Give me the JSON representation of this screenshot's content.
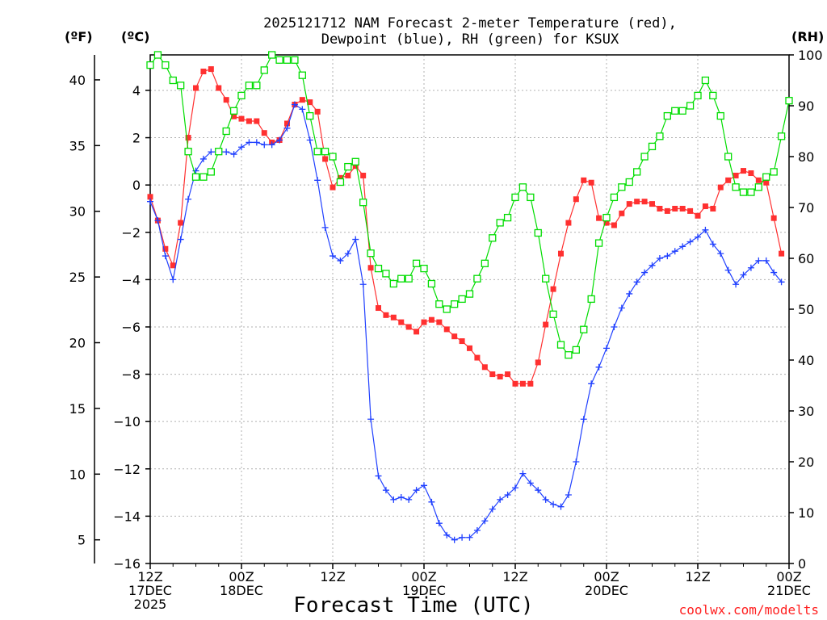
{
  "chart_data": {
    "type": "line",
    "title_line1": "2025121712 NAM Forecast 2-meter Temperature (red),",
    "title_line2": "Dewpoint (blue), RH (green) for KSUX",
    "units": {
      "fahrenheit": "(ºF)",
      "celsius": "(ºC)",
      "rh": "(RH)"
    },
    "xlabel": "Forecast Time (UTC)",
    "credit": "coolwx.com/modelts",
    "x_hours": [
      0,
      84
    ],
    "x_ticks": [
      {
        "h": 0,
        "l1": "12Z",
        "l2": "17DEC",
        "l3": "2025"
      },
      {
        "h": 12,
        "l1": "00Z",
        "l2": "18DEC",
        "l3": ""
      },
      {
        "h": 24,
        "l1": "12Z",
        "l2": "",
        "l3": ""
      },
      {
        "h": 36,
        "l1": "00Z",
        "l2": "19DEC",
        "l3": ""
      },
      {
        "h": 48,
        "l1": "12Z",
        "l2": "",
        "l3": ""
      },
      {
        "h": 60,
        "l1": "00Z",
        "l2": "20DEC",
        "l3": ""
      },
      {
        "h": 72,
        "l1": "12Z",
        "l2": "",
        "l3": ""
      },
      {
        "h": 84,
        "l1": "00Z",
        "l2": "21DEC",
        "l3": ""
      }
    ],
    "celsius_range": [
      -16,
      5.5
    ],
    "celsius_ticks": [
      "4",
      "2",
      "0",
      "−2",
      "−4",
      "−6",
      "−8",
      "−10",
      "−12",
      "−14",
      "−16"
    ],
    "celsius_tick_values": [
      4,
      2,
      0,
      -2,
      -4,
      -6,
      -8,
      -10,
      -12,
      -14,
      -16
    ],
    "fahrenheit_ticks": [
      "40",
      "35",
      "30",
      "25",
      "20",
      "15",
      "10",
      "5"
    ],
    "fahrenheit_tick_values": [
      40,
      35,
      30,
      25,
      20,
      15,
      10,
      5
    ],
    "rh_range": [
      0,
      100
    ],
    "rh_ticks": [
      "100",
      "90",
      "80",
      "70",
      "60",
      "50",
      "40",
      "30",
      "20",
      "10",
      "0"
    ],
    "rh_tick_values": [
      100,
      90,
      80,
      70,
      60,
      50,
      40,
      30,
      20,
      10,
      0
    ],
    "colors": {
      "temperature": "#ff3030",
      "dewpoint": "#2040ff",
      "rh": "#00dd00",
      "axis": "#000000"
    },
    "series": [
      {
        "name": "Temperature",
        "unit": "C",
        "marker": "filled-square",
        "points": [
          [
            0,
            -0.5
          ],
          [
            1,
            -1.5
          ],
          [
            2,
            -2.7
          ],
          [
            3,
            -3.4
          ],
          [
            4,
            -1.6
          ],
          [
            5,
            2.0
          ],
          [
            6,
            4.1
          ],
          [
            7,
            4.8
          ],
          [
            8,
            4.9
          ],
          [
            9,
            4.1
          ],
          [
            10,
            3.6
          ],
          [
            11,
            2.9
          ],
          [
            12,
            2.8
          ],
          [
            13,
            2.7
          ],
          [
            14,
            2.7
          ],
          [
            15,
            2.2
          ],
          [
            16,
            1.8
          ],
          [
            17,
            1.9
          ],
          [
            18,
            2.6
          ],
          [
            19,
            3.4
          ],
          [
            20,
            3.6
          ],
          [
            21,
            3.5
          ],
          [
            22,
            3.1
          ],
          [
            23,
            1.1
          ],
          [
            24,
            -0.1
          ],
          [
            25,
            0.3
          ],
          [
            26,
            0.4
          ],
          [
            27,
            0.8
          ],
          [
            28,
            0.4
          ],
          [
            29,
            -3.5
          ],
          [
            30,
            -5.2
          ],
          [
            31,
            -5.5
          ],
          [
            32,
            -5.6
          ],
          [
            33,
            -5.8
          ],
          [
            34,
            -6.0
          ],
          [
            35,
            -6.2
          ],
          [
            36,
            -5.8
          ],
          [
            37,
            -5.7
          ],
          [
            38,
            -5.8
          ],
          [
            39,
            -6.1
          ],
          [
            40,
            -6.4
          ],
          [
            41,
            -6.6
          ],
          [
            42,
            -6.9
          ],
          [
            43,
            -7.3
          ],
          [
            44,
            -7.7
          ],
          [
            45,
            -8.0
          ],
          [
            46,
            -8.1
          ],
          [
            47,
            -8.0
          ],
          [
            48,
            -8.4
          ],
          [
            49,
            -8.4
          ],
          [
            50,
            -8.4
          ],
          [
            51,
            -7.5
          ],
          [
            52,
            -5.9
          ],
          [
            53,
            -4.4
          ],
          [
            54,
            -2.9
          ],
          [
            55,
            -1.6
          ],
          [
            56,
            -0.6
          ],
          [
            57,
            0.2
          ],
          [
            58,
            0.1
          ],
          [
            59,
            -1.4
          ],
          [
            60,
            -1.6
          ],
          [
            61,
            -1.7
          ],
          [
            62,
            -1.2
          ],
          [
            63,
            -0.8
          ],
          [
            64,
            -0.7
          ],
          [
            65,
            -0.7
          ],
          [
            66,
            -0.8
          ],
          [
            67,
            -1.0
          ],
          [
            68,
            -1.1
          ],
          [
            69,
            -1.0
          ],
          [
            70,
            -1.0
          ],
          [
            71,
            -1.1
          ],
          [
            72,
            -1.3
          ],
          [
            73,
            -0.9
          ],
          [
            74,
            -1.0
          ],
          [
            75,
            -0.1
          ],
          [
            76,
            0.2
          ],
          [
            77,
            0.4
          ],
          [
            78,
            0.6
          ],
          [
            79,
            0.5
          ],
          [
            80,
            0.2
          ],
          [
            81,
            0.1
          ],
          [
            82,
            -1.4
          ],
          [
            83,
            -2.9
          ]
        ]
      },
      {
        "name": "Dewpoint",
        "unit": "C",
        "marker": "plus",
        "points": [
          [
            0,
            -0.7
          ],
          [
            1,
            -1.5
          ],
          [
            2,
            -3.0
          ],
          [
            3,
            -4.0
          ],
          [
            4,
            -2.3
          ],
          [
            5,
            -0.6
          ],
          [
            6,
            0.6
          ],
          [
            7,
            1.1
          ],
          [
            8,
            1.4
          ],
          [
            9,
            1.4
          ],
          [
            10,
            1.4
          ],
          [
            11,
            1.3
          ],
          [
            12,
            1.6
          ],
          [
            13,
            1.8
          ],
          [
            14,
            1.8
          ],
          [
            15,
            1.7
          ],
          [
            16,
            1.7
          ],
          [
            17,
            1.9
          ],
          [
            18,
            2.4
          ],
          [
            19,
            3.4
          ],
          [
            20,
            3.2
          ],
          [
            21,
            1.9
          ],
          [
            22,
            0.2
          ],
          [
            23,
            -1.8
          ],
          [
            24,
            -3.0
          ],
          [
            25,
            -3.2
          ],
          [
            26,
            -2.9
          ],
          [
            27,
            -2.3
          ],
          [
            28,
            -4.2
          ],
          [
            29,
            -9.9
          ],
          [
            30,
            -12.3
          ],
          [
            31,
            -12.9
          ],
          [
            32,
            -13.3
          ],
          [
            33,
            -13.2
          ],
          [
            34,
            -13.3
          ],
          [
            35,
            -12.9
          ],
          [
            36,
            -12.7
          ],
          [
            37,
            -13.4
          ],
          [
            38,
            -14.3
          ],
          [
            39,
            -14.8
          ],
          [
            40,
            -15.0
          ],
          [
            41,
            -14.9
          ],
          [
            42,
            -14.9
          ],
          [
            43,
            -14.6
          ],
          [
            44,
            -14.2
          ],
          [
            45,
            -13.7
          ],
          [
            46,
            -13.3
          ],
          [
            47,
            -13.1
          ],
          [
            48,
            -12.8
          ],
          [
            49,
            -12.2
          ],
          [
            50,
            -12.6
          ],
          [
            51,
            -12.9
          ],
          [
            52,
            -13.3
          ],
          [
            53,
            -13.5
          ],
          [
            54,
            -13.6
          ],
          [
            55,
            -13.1
          ],
          [
            56,
            -11.7
          ],
          [
            57,
            -9.9
          ],
          [
            58,
            -8.4
          ],
          [
            59,
            -7.7
          ],
          [
            60,
            -6.9
          ],
          [
            61,
            -6.0
          ],
          [
            62,
            -5.2
          ],
          [
            63,
            -4.6
          ],
          [
            64,
            -4.1
          ],
          [
            65,
            -3.7
          ],
          [
            66,
            -3.4
          ],
          [
            67,
            -3.1
          ],
          [
            68,
            -3.0
          ],
          [
            69,
            -2.8
          ],
          [
            70,
            -2.6
          ],
          [
            71,
            -2.4
          ],
          [
            72,
            -2.2
          ],
          [
            73,
            -1.9
          ],
          [
            74,
            -2.5
          ],
          [
            75,
            -2.9
          ],
          [
            76,
            -3.6
          ],
          [
            77,
            -4.2
          ],
          [
            78,
            -3.8
          ],
          [
            79,
            -3.5
          ],
          [
            80,
            -3.2
          ],
          [
            81,
            -3.2
          ],
          [
            82,
            -3.7
          ],
          [
            83,
            -4.1
          ]
        ]
      },
      {
        "name": "RH",
        "unit": "%",
        "marker": "open-square",
        "points": [
          [
            0,
            98
          ],
          [
            1,
            100
          ],
          [
            2,
            98
          ],
          [
            3,
            95
          ],
          [
            4,
            94
          ],
          [
            5,
            81
          ],
          [
            6,
            76
          ],
          [
            7,
            76
          ],
          [
            8,
            77
          ],
          [
            9,
            81
          ],
          [
            10,
            85
          ],
          [
            11,
            89
          ],
          [
            12,
            92
          ],
          [
            13,
            94
          ],
          [
            14,
            94
          ],
          [
            15,
            97
          ],
          [
            16,
            100
          ],
          [
            17,
            99
          ],
          [
            18,
            99
          ],
          [
            19,
            99
          ],
          [
            20,
            96
          ],
          [
            21,
            88
          ],
          [
            22,
            81
          ],
          [
            23,
            81
          ],
          [
            24,
            80
          ],
          [
            25,
            75
          ],
          [
            26,
            78
          ],
          [
            27,
            79
          ],
          [
            28,
            71
          ],
          [
            29,
            61
          ],
          [
            30,
            58
          ],
          [
            31,
            57
          ],
          [
            32,
            55
          ],
          [
            33,
            56
          ],
          [
            34,
            56
          ],
          [
            35,
            59
          ],
          [
            36,
            58
          ],
          [
            37,
            55
          ],
          [
            38,
            51
          ],
          [
            39,
            50
          ],
          [
            40,
            51
          ],
          [
            41,
            52
          ],
          [
            42,
            53
          ],
          [
            43,
            56
          ],
          [
            44,
            59
          ],
          [
            45,
            64
          ],
          [
            46,
            67
          ],
          [
            47,
            68
          ],
          [
            48,
            72
          ],
          [
            49,
            74
          ],
          [
            50,
            72
          ],
          [
            51,
            65
          ],
          [
            52,
            56
          ],
          [
            53,
            49
          ],
          [
            54,
            43
          ],
          [
            55,
            41
          ],
          [
            56,
            42
          ],
          [
            57,
            46
          ],
          [
            58,
            52
          ],
          [
            59,
            63
          ],
          [
            60,
            68
          ],
          [
            61,
            72
          ],
          [
            62,
            74
          ],
          [
            63,
            75
          ],
          [
            64,
            77
          ],
          [
            65,
            80
          ],
          [
            66,
            82
          ],
          [
            67,
            84
          ],
          [
            68,
            88
          ],
          [
            69,
            89
          ],
          [
            70,
            89
          ],
          [
            71,
            90
          ],
          [
            72,
            92
          ],
          [
            73,
            95
          ],
          [
            74,
            92
          ],
          [
            75,
            88
          ],
          [
            76,
            80
          ],
          [
            77,
            74
          ],
          [
            78,
            73
          ],
          [
            79,
            73
          ],
          [
            80,
            74
          ],
          [
            81,
            76
          ],
          [
            82,
            77
          ],
          [
            83,
            84
          ],
          [
            84,
            91
          ]
        ]
      }
    ]
  }
}
